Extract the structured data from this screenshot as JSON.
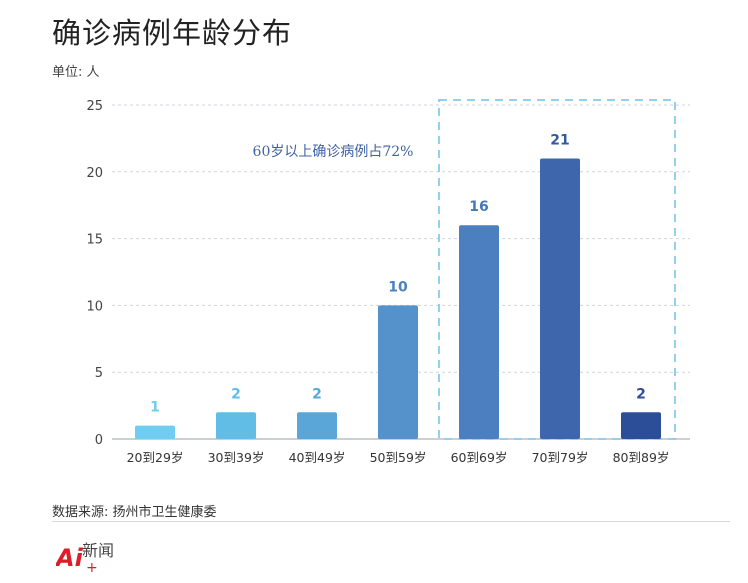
{
  "title": "确诊病例年龄分布",
  "unit_label": "单位: 人",
  "source_label": "数据来源: 扬州市卫生健康委",
  "logo": {
    "main": "Ai",
    "sub": "新闻"
  },
  "colors": {
    "grid": "#cfd3d8",
    "axis": "#9aa0a6",
    "highlight_box": "#6fc0e8",
    "annotation": "#3f62a4",
    "bar_label_light": "#6fc0e8",
    "bar_label_mid": "#4a82c1",
    "bar_label_dark": "#3559a0",
    "logo_red": "#d8202a",
    "logo_dark": "#444444"
  },
  "chart_data": {
    "type": "bar",
    "title": "确诊病例年龄分布",
    "ylabel": "单位: 人",
    "ylim": [
      0,
      25
    ],
    "yticks": [
      0,
      5,
      10,
      15,
      20,
      25
    ],
    "grid": true,
    "categories": [
      "20到29岁",
      "30到39岁",
      "40到49岁",
      "50到59岁",
      "60到69岁",
      "70到79岁",
      "80到89岁"
    ],
    "values": [
      1,
      2,
      2,
      10,
      16,
      21,
      2
    ],
    "bar_colors": [
      "#6ecdf0",
      "#62bde6",
      "#5aa6d8",
      "#5591cb",
      "#4b7fc0",
      "#3e66ad",
      "#2c4e98"
    ],
    "label_colors": [
      "#6ecdf0",
      "#62bde6",
      "#5aa6d8",
      "#4a82c1",
      "#4578ba",
      "#3559a0",
      "#2c4e98"
    ],
    "annotation": "60岁以上确诊病例占72%",
    "highlight_range": [
      "60到69岁",
      "80到89岁"
    ]
  }
}
